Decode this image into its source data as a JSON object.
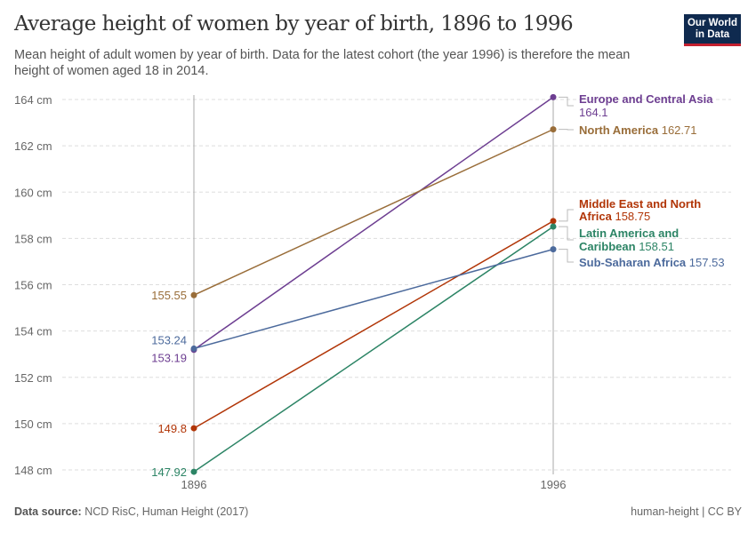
{
  "header": {
    "title": "Average height of women by year of birth, 1896 to 1996",
    "subtitle": "Mean height of adult women by year of birth. Data for the latest cohort (the year 1996) is therefore the mean height of women aged 18 in 2014.",
    "logo": "Our World in Data"
  },
  "footer": {
    "source_label": "Data source:",
    "source": "NCD RisC, Human Height (2017)",
    "license": "human-height | CC BY"
  },
  "chart_data": {
    "type": "line",
    "title": "Average height of women by year of birth, 1896 to 1996",
    "x": [
      1896,
      1996
    ],
    "ylim": [
      148,
      164
    ],
    "yticks": [
      148,
      150,
      152,
      154,
      156,
      158,
      160,
      162,
      164
    ],
    "ytick_labels": [
      "148 cm",
      "150 cm",
      "152 cm",
      "154 cm",
      "156 cm",
      "158 cm",
      "160 cm",
      "162 cm",
      "164 cm"
    ],
    "xtick_labels": [
      "1896",
      "1996"
    ],
    "grid": true,
    "series": [
      {
        "name": "Europe and Central Asia",
        "color": "#6d3e91",
        "values": [
          153.19,
          164.1
        ],
        "start_label": "153.19",
        "end_label": "164.1"
      },
      {
        "name": "North America",
        "color": "#996d39",
        "values": [
          155.55,
          162.71
        ],
        "start_label": "155.55",
        "end_label": "162.71"
      },
      {
        "name": "Middle East and North Africa",
        "color": "#b13507",
        "values": [
          149.8,
          158.75
        ],
        "start_label": "149.8",
        "end_label": "158.75"
      },
      {
        "name": "Latin America and Caribbean",
        "color": "#2c8465",
        "values": [
          147.92,
          158.51
        ],
        "start_label": "147.92",
        "end_label": "158.51"
      },
      {
        "name": "Sub-Saharan Africa",
        "color": "#4c6a9c",
        "values": [
          153.24,
          157.53
        ],
        "start_label": "153.24",
        "end_label": "157.53"
      }
    ]
  }
}
